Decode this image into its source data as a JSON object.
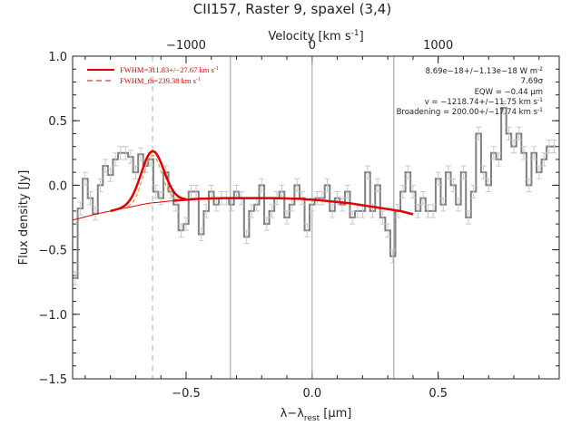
{
  "chart_data": {
    "type": "line",
    "title": "CII157, Raster 9, spaxel (3,4)",
    "xlabel_main": "λ−λ",
    "xlabel_sub": "rest",
    "xlabel_unit": " [μm]",
    "ylabel": "Flux density [Jy]",
    "top_axis_label": "Velocity [km s",
    "top_axis_label_sup": "-1",
    "top_axis_label_end": "]",
    "xlim": [
      -0.95,
      0.98
    ],
    "ylim": [
      -1.5,
      1.0
    ],
    "x_ticks": [
      -0.5,
      0.0,
      0.5
    ],
    "x_tick_labels": [
      "−0.5",
      "0.0",
      "0.5"
    ],
    "y_ticks": [
      -1.5,
      -1.0,
      -0.5,
      0.0,
      0.5,
      1.0
    ],
    "y_tick_labels": [
      "−1.5",
      "−1.0",
      "−0.5",
      "0.0",
      "0.5",
      "1.0"
    ],
    "top_ticks_x": [
      -0.5,
      0.0,
      0.5
    ],
    "top_tick_labels": [
      "−1000",
      "0",
      "1000"
    ],
    "vertical_lines_gray": [
      -0.324,
      0.0,
      0.324
    ],
    "vertical_line_dashed": -0.633,
    "legend": [
      {
        "label": "FWHM=311.83+/−27.67 km s",
        "sup": "-1",
        "color": "#e00000",
        "style": "solid"
      },
      {
        "label": "FWHM_th=239.38 km s",
        "sup": "-1",
        "color": "#e00000",
        "style": "dashed"
      }
    ],
    "annotations": [
      "8.69e−18+/−1.13e−18 W m",
      "7.69σ",
      "EQW = −0.44 μm",
      "v = −1218.74+/−11.75 km s",
      "Broadening = 200.00+/−17.74 km s"
    ],
    "annotation_sups": [
      "-2",
      "",
      "",
      "-1",
      "-1"
    ],
    "spectrum": {
      "x": [
        -0.94,
        -0.92,
        -0.9,
        -0.88,
        -0.86,
        -0.84,
        -0.82,
        -0.8,
        -0.78,
        -0.76,
        -0.74,
        -0.72,
        -0.7,
        -0.68,
        -0.66,
        -0.64,
        -0.62,
        -0.6,
        -0.58,
        -0.56,
        -0.54,
        -0.52,
        -0.5,
        -0.48,
        -0.46,
        -0.44,
        -0.42,
        -0.4,
        -0.38,
        -0.36,
        -0.34,
        -0.32,
        -0.3,
        -0.28,
        -0.26,
        -0.24,
        -0.22,
        -0.2,
        -0.18,
        -0.16,
        -0.14,
        -0.12,
        -0.1,
        -0.08,
        -0.06,
        -0.04,
        -0.02,
        0.0,
        0.02,
        0.04,
        0.06,
        0.08,
        0.1,
        0.12,
        0.14,
        0.16,
        0.18,
        0.2,
        0.22,
        0.24,
        0.26,
        0.28,
        0.3,
        0.32,
        0.34,
        0.36,
        0.38,
        0.4,
        0.42,
        0.44,
        0.46,
        0.48,
        0.5,
        0.52,
        0.54,
        0.56,
        0.58,
        0.6,
        0.62,
        0.64,
        0.66,
        0.68,
        0.7,
        0.72,
        0.74,
        0.76,
        0.78,
        0.8,
        0.82,
        0.84,
        0.86,
        0.88,
        0.9,
        0.92,
        0.94,
        0.96
      ],
      "y": [
        -0.72,
        -0.18,
        0.05,
        -0.1,
        -0.22,
        0.0,
        0.15,
        0.08,
        0.2,
        0.25,
        0.25,
        0.22,
        0.1,
        0.24,
        0.15,
        0.2,
        -0.05,
        -0.1,
        0.1,
        -0.05,
        -0.15,
        -0.35,
        -0.3,
        -0.05,
        -0.05,
        -0.38,
        -0.2,
        -0.05,
        -0.15,
        -0.1,
        -0.1,
        -0.15,
        -0.05,
        -0.1,
        -0.4,
        -0.2,
        -0.15,
        0.0,
        -0.3,
        -0.2,
        -0.1,
        -0.05,
        -0.25,
        -0.15,
        0.0,
        -0.1,
        -0.35,
        -0.15,
        -0.1,
        -0.1,
        0.0,
        -0.2,
        -0.1,
        -0.15,
        -0.05,
        -0.25,
        -0.2,
        -0.2,
        0.1,
        -0.2,
        0.0,
        -0.25,
        -0.35,
        -0.55,
        -0.2,
        -0.05,
        0.1,
        -0.05,
        -0.2,
        -0.1,
        -0.2,
        -0.2,
        0.05,
        -0.15,
        0.1,
        0.0,
        -0.15,
        0.1,
        -0.25,
        -0.05,
        0.4,
        0.1,
        0.0,
        0.25,
        0.2,
        0.6,
        0.4,
        0.3,
        0.4,
        0.25,
        0.0,
        0.25,
        0.1,
        0.2,
        0.3,
        0.3
      ],
      "error": 0.05
    },
    "continuum": {
      "x": [
        -0.95,
        -0.85,
        -0.75,
        -0.65,
        -0.55,
        -0.45,
        -0.35,
        -0.25,
        -0.15,
        -0.05,
        0.05,
        0.15,
        0.25,
        0.35,
        0.4
      ],
      "y": [
        -0.27,
        -0.22,
        -0.18,
        -0.14,
        -0.12,
        -0.105,
        -0.1,
        -0.1,
        -0.1,
        -0.105,
        -0.12,
        -0.14,
        -0.17,
        -0.2,
        -0.225
      ]
    },
    "line_model": {
      "center": -0.633,
      "amplitude": 0.4,
      "sigma": 0.045,
      "x_range": [
        -0.8,
        -0.5
      ]
    },
    "line_model_thermal": {
      "center": -0.633,
      "amplitude": 0.37,
      "sigma": 0.036,
      "x_range": [
        -0.78,
        -0.54
      ]
    }
  }
}
